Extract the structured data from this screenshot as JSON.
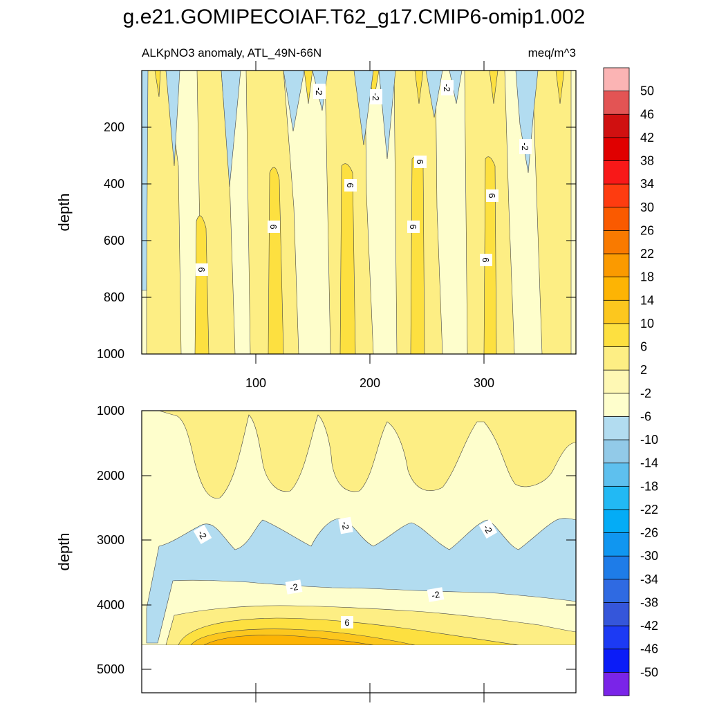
{
  "title": "g.e21.GOMIPECOIAF.T62_g17.CMIP6-omip1.002",
  "colorbar": {
    "labels": [
      "50",
      "46",
      "42",
      "38",
      "34",
      "30",
      "26",
      "22",
      "18",
      "14",
      "10",
      "6",
      "2",
      "-2",
      "-6",
      "-10",
      "-14",
      "-18",
      "-22",
      "-26",
      "-30",
      "-34",
      "-38",
      "-42",
      "-46",
      "-50"
    ],
    "colors": [
      "#fbb4b4",
      "#e35454",
      "#d01010",
      "#e00000",
      "#f81818",
      "#fe3c10",
      "#fa5a00",
      "#f97a00",
      "#fb9a00",
      "#fdb404",
      "#fcc71e",
      "#fde040",
      "#fdee84",
      "#fef8b4",
      "#fefecc",
      "#b2dcf0",
      "#92cae8",
      "#5ec0ee",
      "#22b9f4",
      "#04acf6",
      "#1096f0",
      "#1e7ce8",
      "#2f6ae2",
      "#3556da",
      "#1c3af4",
      "#0b1cf7",
      "#7a24e8"
    ]
  },
  "chart_data": [
    {
      "type": "heatmap",
      "panel": "upper",
      "left_title": "ALKpNO3 anomaly, ATL_49N-66N",
      "right_title": "meq/m^3",
      "ylabel": "depth",
      "xlabel": "",
      "yticks": [
        "200",
        "400",
        "600",
        "800",
        "1000"
      ],
      "xticks": [
        "100",
        "200",
        "300"
      ],
      "ylim": [
        0,
        1000
      ],
      "xlim": [
        0,
        372
      ],
      "contour_labels": [
        "-2",
        "-2",
        "-2",
        "-2",
        "6",
        "6",
        "6",
        "6",
        "6",
        "6",
        "6"
      ]
    },
    {
      "type": "heatmap",
      "panel": "lower",
      "ylabel": "depth",
      "xlabel": "",
      "yticks": [
        "1000",
        "2000",
        "3000",
        "4000",
        "5000"
      ],
      "ylim": [
        1000,
        5400
      ],
      "xlim": [
        0,
        372
      ],
      "contour_labels": [
        "-2",
        "-2",
        "-2",
        "-2",
        "-2",
        "-2",
        "6"
      ]
    }
  ]
}
